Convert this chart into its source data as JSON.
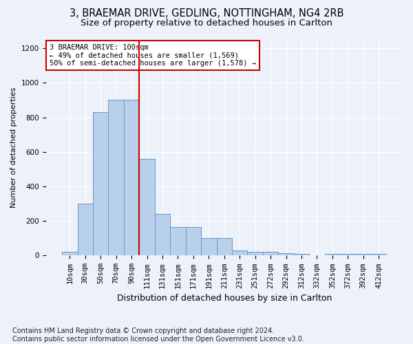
{
  "title_line1": "3, BRAEMAR DRIVE, GEDLING, NOTTINGHAM, NG4 2RB",
  "title_line2": "Size of property relative to detached houses in Carlton",
  "xlabel": "Distribution of detached houses by size in Carlton",
  "ylabel": "Number of detached properties",
  "footnote": "Contains HM Land Registry data © Crown copyright and database right 2024.\nContains public sector information licensed under the Open Government Licence v3.0.",
  "bar_labels": [
    "10sqm",
    "30sqm",
    "50sqm",
    "70sqm",
    "90sqm",
    "111sqm",
    "131sqm",
    "151sqm",
    "171sqm",
    "191sqm",
    "211sqm",
    "231sqm",
    "251sqm",
    "272sqm",
    "292sqm",
    "312sqm",
    "332sqm",
    "352sqm",
    "372sqm",
    "392sqm",
    "412sqm"
  ],
  "bar_values": [
    20,
    300,
    830,
    900,
    900,
    560,
    240,
    165,
    165,
    100,
    100,
    30,
    20,
    20,
    15,
    10,
    0,
    10,
    10,
    10,
    10
  ],
  "bar_color": "#b8d0ea",
  "bar_edge_color": "#6699cc",
  "vline_x": 4.5,
  "vline_color": "#cc0000",
  "annotation_text": "3 BRAEMAR DRIVE: 100sqm\n← 49% of detached houses are smaller (1,569)\n50% of semi-detached houses are larger (1,578) →",
  "annotation_box_color": "#ffffff",
  "annotation_box_edge": "#cc0000",
  "ylim": [
    0,
    1250
  ],
  "yticks": [
    0,
    200,
    400,
    600,
    800,
    1000,
    1200
  ],
  "background_color": "#edf1f9",
  "plot_bg_color": "#edf1f9",
  "title1_fontsize": 10.5,
  "title2_fontsize": 9.5,
  "ylabel_fontsize": 8,
  "xlabel_fontsize": 9,
  "tick_fontsize": 7.5,
  "footnote_fontsize": 7
}
